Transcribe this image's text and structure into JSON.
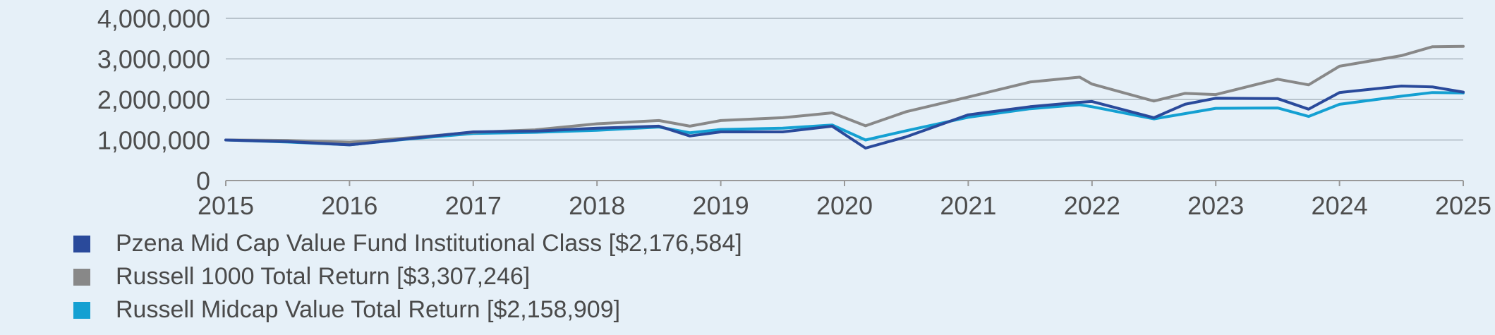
{
  "chart_data": {
    "type": "line",
    "title": "",
    "xlabel": "",
    "ylabel": "",
    "x_ticks": [
      "2015",
      "2016",
      "2017",
      "2018",
      "2019",
      "2020",
      "2021",
      "2022",
      "2023",
      "2024",
      "2025"
    ],
    "y_ticks": [
      "0",
      "1,000,000",
      "2,000,000",
      "3,000,000",
      "4,000,000"
    ],
    "xlim": [
      2015,
      2025
    ],
    "ylim": [
      0,
      4000000
    ],
    "grid": "horizontal",
    "legend": "bottom-left",
    "x": [
      2015.0,
      2015.5,
      2016.0,
      2016.5,
      2017.0,
      2017.5,
      2018.0,
      2018.5,
      2018.75,
      2019.0,
      2019.5,
      2019.9,
      2020.17,
      2020.5,
      2021.0,
      2021.5,
      2021.9,
      2022.0,
      2022.5,
      2022.75,
      2023.0,
      2023.5,
      2023.75,
      2024.0,
      2024.5,
      2024.75,
      2025.0
    ],
    "series": [
      {
        "name": "Pzena Mid Cap Value Fund Institutional Class [$2,176,584]",
        "color": "#2a4a9b",
        "values": [
          1000000,
          960000,
          880000,
          1040000,
          1200000,
          1220000,
          1290000,
          1340000,
          1100000,
          1200000,
          1200000,
          1340000,
          800000,
          1080000,
          1620000,
          1820000,
          1930000,
          1950000,
          1550000,
          1880000,
          2030000,
          2020000,
          1760000,
          2170000,
          2330000,
          2310000,
          2180000
        ]
      },
      {
        "name": "Russell 1000 Total Return [$3,307,246]",
        "color": "#888888",
        "values": [
          1000000,
          990000,
          940000,
          1060000,
          1190000,
          1250000,
          1400000,
          1480000,
          1340000,
          1480000,
          1550000,
          1670000,
          1350000,
          1700000,
          2060000,
          2430000,
          2550000,
          2380000,
          1960000,
          2150000,
          2120000,
          2500000,
          2360000,
          2820000,
          3080000,
          3300000,
          3310000
        ]
      },
      {
        "name": "Russell Midcap Value Total Return [$2,158,909]",
        "color": "#14a0d2",
        "values": [
          1000000,
          950000,
          880000,
          1030000,
          1160000,
          1190000,
          1240000,
          1320000,
          1180000,
          1260000,
          1290000,
          1370000,
          1000000,
          1230000,
          1560000,
          1770000,
          1870000,
          1820000,
          1520000,
          1650000,
          1780000,
          1790000,
          1580000,
          1880000,
          2080000,
          2170000,
          2160000
        ]
      }
    ]
  },
  "legend": [
    {
      "color": "#2a4a9b",
      "label": "Pzena Mid Cap Value Fund Institutional Class [$2,176,584]"
    },
    {
      "color": "#888888",
      "label": "Russell 1000 Total Return [$3,307,246]"
    },
    {
      "color": "#14a0d2",
      "label": "Russell Midcap Value Total Return [$2,158,909]"
    }
  ]
}
